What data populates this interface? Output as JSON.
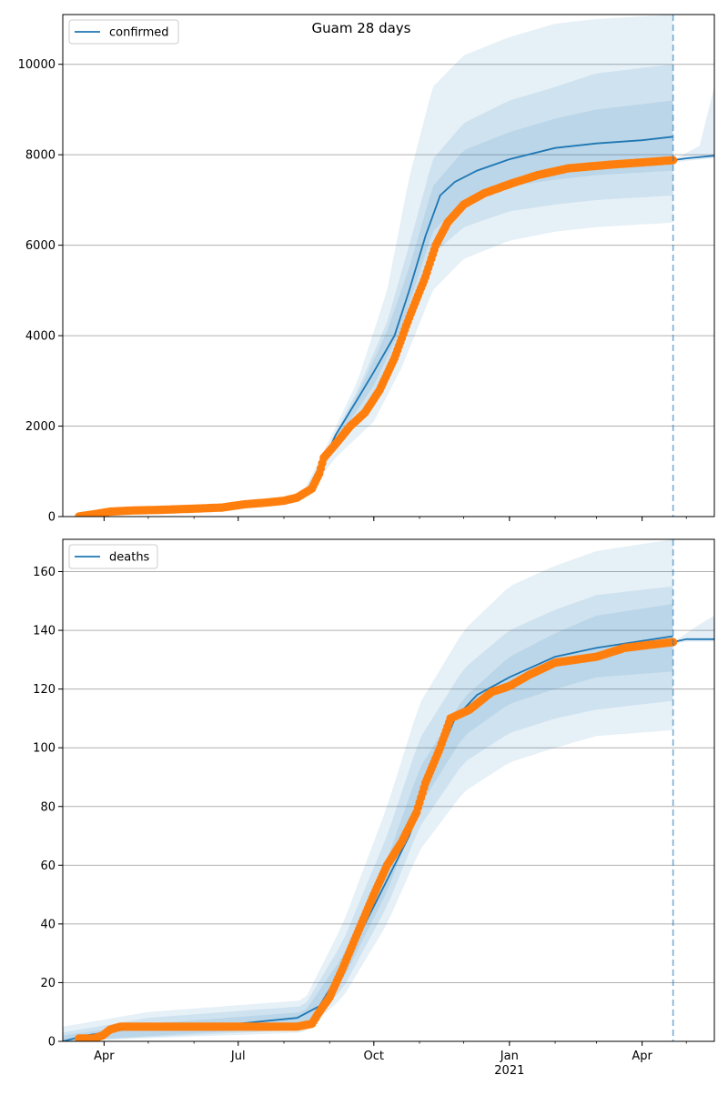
{
  "figure_title": "Guam 28 days",
  "colors": {
    "model_line": "#1f77b4",
    "observed_points": "#ff7f0e",
    "band": "#1f77b4",
    "grid": "#b0b0b0",
    "forecast_marker": "#1f77b4"
  },
  "x_axis": {
    "tick_labels": [
      {
        "label": "Apr",
        "sub": "",
        "date": "2020-04-01"
      },
      {
        "label": "Jul",
        "sub": "",
        "date": "2020-07-01"
      },
      {
        "label": "Oct",
        "sub": "",
        "date": "2020-10-01"
      },
      {
        "label": "Jan",
        "sub": "2021",
        "date": "2021-01-01"
      },
      {
        "label": "Apr",
        "sub": "",
        "date": "2021-04-01"
      }
    ],
    "range": [
      "2020-03-04",
      "2021-05-20"
    ],
    "forecast_start": "2021-04-22"
  },
  "chart_data": [
    {
      "type": "line",
      "legend": "confirmed",
      "legend_position": "top-left",
      "grid": "y",
      "ylim": [
        0,
        11100
      ],
      "yticks": [
        0,
        2000,
        4000,
        6000,
        8000,
        10000
      ],
      "observed": [
        [
          "2020-03-15",
          3
        ],
        [
          "2020-03-25",
          50
        ],
        [
          "2020-04-05",
          110
        ],
        [
          "2020-04-20",
          135
        ],
        [
          "2020-05-10",
          150
        ],
        [
          "2020-06-01",
          175
        ],
        [
          "2020-06-20",
          200
        ],
        [
          "2020-07-05",
          270
        ],
        [
          "2020-07-20",
          310
        ],
        [
          "2020-08-01",
          350
        ],
        [
          "2020-08-10",
          420
        ],
        [
          "2020-08-20",
          620
        ],
        [
          "2020-08-25",
          950
        ],
        [
          "2020-08-28",
          1300
        ],
        [
          "2020-09-05",
          1600
        ],
        [
          "2020-09-15",
          2000
        ],
        [
          "2020-09-25",
          2300
        ],
        [
          "2020-10-05",
          2800
        ],
        [
          "2020-10-15",
          3500
        ],
        [
          "2020-10-25",
          4400
        ],
        [
          "2020-11-05",
          5300
        ],
        [
          "2020-11-12",
          6000
        ],
        [
          "2020-11-20",
          6500
        ],
        [
          "2020-12-01",
          6900
        ],
        [
          "2020-12-15",
          7150
        ],
        [
          "2021-01-01",
          7350
        ],
        [
          "2021-01-20",
          7550
        ],
        [
          "2021-02-10",
          7700
        ],
        [
          "2021-03-10",
          7780
        ],
        [
          "2021-04-05",
          7840
        ],
        [
          "2021-04-22",
          7880
        ]
      ],
      "model": [
        [
          "2020-03-15",
          0
        ],
        [
          "2020-04-15",
          120
        ],
        [
          "2020-06-01",
          180
        ],
        [
          "2020-07-15",
          300
        ],
        [
          "2020-08-15",
          500
        ],
        [
          "2020-08-25",
          1000
        ],
        [
          "2020-09-05",
          1800
        ],
        [
          "2020-09-20",
          2600
        ],
        [
          "2020-10-01",
          3200
        ],
        [
          "2020-10-15",
          4000
        ],
        [
          "2020-10-25",
          5000
        ],
        [
          "2020-11-05",
          6200
        ],
        [
          "2020-11-15",
          7100
        ],
        [
          "2020-11-25",
          7400
        ],
        [
          "2020-12-10",
          7650
        ],
        [
          "2021-01-01",
          7900
        ],
        [
          "2021-02-01",
          8150
        ],
        [
          "2021-03-01",
          8250
        ],
        [
          "2021-04-01",
          8320
        ],
        [
          "2021-04-22",
          8400
        ]
      ],
      "bands": [
        {
          "name": "outer",
          "lower": [
            [
              "2020-08-15",
              400
            ],
            [
              "2020-09-05",
              1300
            ],
            [
              "2020-10-01",
              2100
            ],
            [
              "2020-10-20",
              3300
            ],
            [
              "2020-11-10",
              5000
            ],
            [
              "2020-12-01",
              5700
            ],
            [
              "2021-01-01",
              6100
            ],
            [
              "2021-02-01",
              6300
            ],
            [
              "2021-03-01",
              6400
            ],
            [
              "2021-04-22",
              6500
            ]
          ],
          "upper": [
            [
              "2020-08-15",
              600
            ],
            [
              "2020-09-01",
              1700
            ],
            [
              "2020-09-20",
              3000
            ],
            [
              "2020-10-10",
              5000
            ],
            [
              "2020-10-25",
              7500
            ],
            [
              "2020-11-10",
              9500
            ],
            [
              "2020-12-01",
              10200
            ],
            [
              "2021-01-01",
              10600
            ],
            [
              "2021-02-01",
              10900
            ],
            [
              "2021-03-01",
              11000
            ],
            [
              "2021-04-22",
              11100
            ]
          ]
        },
        {
          "name": "middle",
          "lower": [
            [
              "2020-08-15",
              450
            ],
            [
              "2020-09-05",
              1500
            ],
            [
              "2020-10-01",
              2600
            ],
            [
              "2020-10-20",
              3800
            ],
            [
              "2020-11-10",
              5800
            ],
            [
              "2020-12-01",
              6400
            ],
            [
              "2021-01-01",
              6750
            ],
            [
              "2021-02-01",
              6900
            ],
            [
              "2021-03-01",
              7000
            ],
            [
              "2021-04-22",
              7100
            ]
          ],
          "upper": [
            [
              "2020-08-15",
              550
            ],
            [
              "2020-09-01",
              1600
            ],
            [
              "2020-09-20",
              2800
            ],
            [
              "2020-10-10",
              4300
            ],
            [
              "2020-10-25",
              6000
            ],
            [
              "2020-11-10",
              7900
            ],
            [
              "2020-12-01",
              8700
            ],
            [
              "2021-01-01",
              9200
            ],
            [
              "2021-02-01",
              9500
            ],
            [
              "2021-03-01",
              9800
            ],
            [
              "2021-04-22",
              10000
            ]
          ]
        },
        {
          "name": "inner",
          "lower": [
            [
              "2020-08-15",
              480
            ],
            [
              "2020-09-05",
              1650
            ],
            [
              "2020-10-01",
              2900
            ],
            [
              "2020-10-20",
              4200
            ],
            [
              "2020-11-10",
              6300
            ],
            [
              "2020-12-01",
              7000
            ],
            [
              "2021-01-01",
              7300
            ],
            [
              "2021-02-01",
              7450
            ],
            [
              "2021-03-01",
              7550
            ],
            [
              "2021-04-22",
              7650
            ]
          ],
          "upper": [
            [
              "2020-08-15",
              520
            ],
            [
              "2020-09-01",
              1550
            ],
            [
              "2020-09-20",
              2700
            ],
            [
              "2020-10-10",
              4100
            ],
            [
              "2020-10-25",
              5500
            ],
            [
              "2020-11-10",
              7300
            ],
            [
              "2020-12-01",
              8100
            ],
            [
              "2021-01-01",
              8500
            ],
            [
              "2021-02-01",
              8800
            ],
            [
              "2021-03-01",
              9000
            ],
            [
              "2021-04-22",
              9200
            ]
          ]
        }
      ],
      "forecast": [
        [
          "2021-04-22",
          7880
        ],
        [
          "2021-05-01",
          7920
        ],
        [
          "2021-05-20",
          7980
        ]
      ],
      "forecast_upper": [
        [
          "2021-04-22",
          7880
        ],
        [
          "2021-05-10",
          8200
        ],
        [
          "2021-05-20",
          9500
        ]
      ]
    },
    {
      "type": "line",
      "legend": "deaths",
      "legend_position": "top-left",
      "grid": "y",
      "ylim": [
        0,
        171
      ],
      "yticks": [
        0,
        20,
        40,
        60,
        80,
        100,
        120,
        140,
        160
      ],
      "observed": [
        [
          "2020-03-15",
          1
        ],
        [
          "2020-03-25",
          1
        ],
        [
          "2020-03-31",
          2
        ],
        [
          "2020-04-05",
          4
        ],
        [
          "2020-04-12",
          5
        ],
        [
          "2020-05-15",
          5
        ],
        [
          "2020-06-15",
          5
        ],
        [
          "2020-07-15",
          5
        ],
        [
          "2020-08-10",
          5
        ],
        [
          "2020-08-20",
          6
        ],
        [
          "2020-08-25",
          10
        ],
        [
          "2020-09-01",
          15
        ],
        [
          "2020-09-10",
          25
        ],
        [
          "2020-09-20",
          37
        ],
        [
          "2020-10-01",
          50
        ],
        [
          "2020-10-10",
          60
        ],
        [
          "2020-10-20",
          68
        ],
        [
          "2020-10-30",
          78
        ],
        [
          "2020-11-05",
          88
        ],
        [
          "2020-11-15",
          100
        ],
        [
          "2020-11-22",
          110
        ],
        [
          "2020-12-05",
          113
        ],
        [
          "2020-12-20",
          119
        ],
        [
          "2021-01-01",
          121
        ],
        [
          "2021-01-15",
          125
        ],
        [
          "2021-02-01",
          129
        ],
        [
          "2021-03-01",
          131
        ],
        [
          "2021-03-20",
          134
        ],
        [
          "2021-04-05",
          135
        ],
        [
          "2021-04-22",
          136
        ]
      ],
      "model": [
        [
          "2020-03-04",
          0
        ],
        [
          "2020-03-20",
          2
        ],
        [
          "2020-04-15",
          4
        ],
        [
          "2020-07-01",
          6
        ],
        [
          "2020-08-10",
          8
        ],
        [
          "2020-08-25",
          12
        ],
        [
          "2020-09-10",
          25
        ],
        [
          "2020-09-25",
          40
        ],
        [
          "2020-10-10",
          55
        ],
        [
          "2020-10-25",
          70
        ],
        [
          "2020-11-10",
          92
        ],
        [
          "2020-11-25",
          110
        ],
        [
          "2020-12-10",
          118
        ],
        [
          "2021-01-01",
          124
        ],
        [
          "2021-02-01",
          131
        ],
        [
          "2021-03-01",
          134
        ],
        [
          "2021-04-22",
          138
        ]
      ],
      "bands": [
        {
          "name": "outer",
          "lower": [
            [
              "2020-03-04",
              0
            ],
            [
              "2020-08-15",
              3
            ],
            [
              "2020-09-10",
              15
            ],
            [
              "2020-10-10",
              40
            ],
            [
              "2020-11-01",
              65
            ],
            [
              "2020-12-01",
              85
            ],
            [
              "2021-01-01",
              95
            ],
            [
              "2021-02-01",
              100
            ],
            [
              "2021-03-01",
              104
            ],
            [
              "2021-04-22",
              106
            ]
          ],
          "upper": [
            [
              "2020-03-04",
              5
            ],
            [
              "2020-05-01",
              10
            ],
            [
              "2020-08-15",
              14
            ],
            [
              "2020-09-10",
              40
            ],
            [
              "2020-10-10",
              80
            ],
            [
              "2020-11-01",
              115
            ],
            [
              "2020-12-01",
              140
            ],
            [
              "2021-01-01",
              155
            ],
            [
              "2021-02-01",
              162
            ],
            [
              "2021-03-01",
              167
            ],
            [
              "2021-04-22",
              171
            ]
          ]
        },
        {
          "name": "middle",
          "lower": [
            [
              "2020-03-04",
              0
            ],
            [
              "2020-08-15",
              4
            ],
            [
              "2020-09-10",
              18
            ],
            [
              "2020-10-10",
              46
            ],
            [
              "2020-11-01",
              73
            ],
            [
              "2020-12-01",
              95
            ],
            [
              "2021-01-01",
              105
            ],
            [
              "2021-02-01",
              110
            ],
            [
              "2021-03-01",
              113
            ],
            [
              "2021-04-22",
              116
            ]
          ],
          "upper": [
            [
              "2020-03-04",
              3
            ],
            [
              "2020-05-01",
              8
            ],
            [
              "2020-08-15",
              12
            ],
            [
              "2020-09-10",
              34
            ],
            [
              "2020-10-10",
              70
            ],
            [
              "2020-11-01",
              103
            ],
            [
              "2020-12-01",
              127
            ],
            [
              "2021-01-01",
              140
            ],
            [
              "2021-02-01",
              147
            ],
            [
              "2021-03-01",
              152
            ],
            [
              "2021-04-22",
              155
            ]
          ]
        },
        {
          "name": "inner",
          "lower": [
            [
              "2020-03-04",
              0
            ],
            [
              "2020-08-15",
              5
            ],
            [
              "2020-09-10",
              21
            ],
            [
              "2020-10-10",
              51
            ],
            [
              "2020-11-01",
              80
            ],
            [
              "2020-12-01",
              104
            ],
            [
              "2021-01-01",
              115
            ],
            [
              "2021-02-01",
              120
            ],
            [
              "2021-03-01",
              124
            ],
            [
              "2021-04-22",
              126
            ]
          ],
          "upper": [
            [
              "2020-03-04",
              2
            ],
            [
              "2020-05-01",
              6
            ],
            [
              "2020-08-15",
              10
            ],
            [
              "2020-09-10",
              29
            ],
            [
              "2020-10-10",
              62
            ],
            [
              "2020-11-01",
              93
            ],
            [
              "2020-12-01",
              117
            ],
            [
              "2021-01-01",
              131
            ],
            [
              "2021-02-01",
              139
            ],
            [
              "2021-03-01",
              145
            ],
            [
              "2021-04-22",
              149
            ]
          ]
        }
      ],
      "forecast": [
        [
          "2021-04-22",
          136
        ],
        [
          "2021-05-01",
          137
        ],
        [
          "2021-05-20",
          137
        ]
      ],
      "forecast_upper": [
        [
          "2021-04-22",
          136
        ],
        [
          "2021-05-10",
          142
        ],
        [
          "2021-05-20",
          145
        ]
      ]
    }
  ]
}
